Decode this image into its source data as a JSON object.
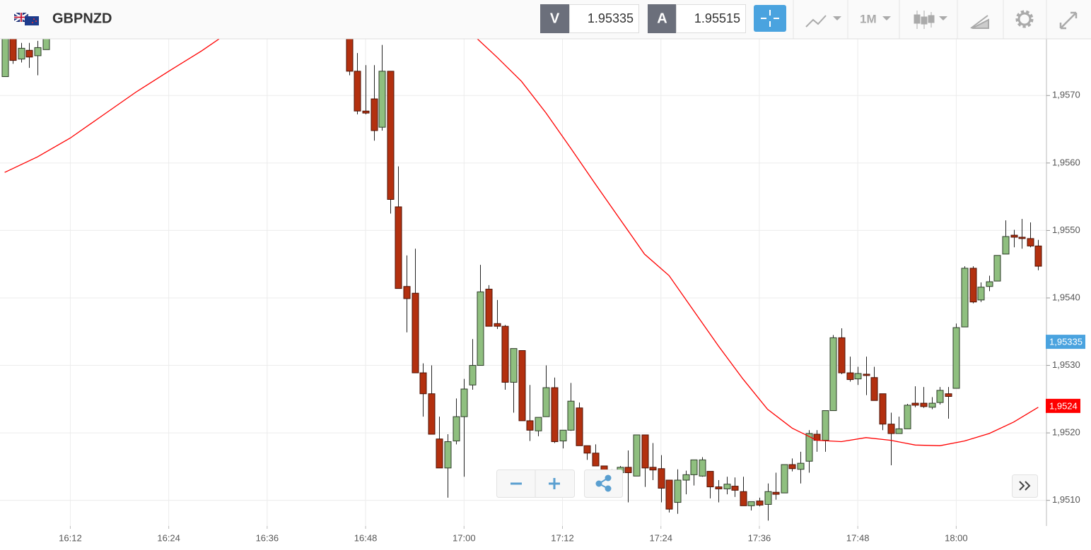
{
  "header": {
    "symbol": "GBPNZD",
    "sell_label": "V",
    "sell_price": 1.95335,
    "buy_label": "A",
    "buy_price": 1.95515,
    "timeframe": "1M"
  },
  "chart_data": {
    "type": "candlestick",
    "x": [
      "16:04",
      "16:05",
      "16:06",
      "16:07",
      "16:08",
      "16:09",
      "16:46",
      "16:47",
      "16:48",
      "16:49",
      "16:50",
      "16:51",
      "16:52",
      "16:53",
      "16:54",
      "16:55",
      "16:56",
      "16:57",
      "16:58",
      "16:59",
      "17:00",
      "17:01",
      "17:02",
      "17:03",
      "17:04",
      "17:05",
      "17:06",
      "17:07",
      "17:08",
      "17:09",
      "17:10",
      "17:11",
      "17:12",
      "17:13",
      "17:14",
      "17:15",
      "17:16",
      "17:17",
      "17:18",
      "17:19",
      "17:20",
      "17:21",
      "17:22",
      "17:23",
      "17:24",
      "17:25",
      "17:26",
      "17:27",
      "17:28",
      "17:29",
      "17:30",
      "17:31",
      "17:32",
      "17:33",
      "17:34",
      "17:35",
      "17:36",
      "17:37",
      "17:38",
      "17:39",
      "17:40",
      "17:41",
      "17:42",
      "17:43",
      "17:44",
      "17:45",
      "17:46",
      "17:47",
      "17:48",
      "17:49",
      "17:50",
      "17:51",
      "17:52",
      "17:53",
      "17:54",
      "17:55",
      "17:56",
      "17:57",
      "17:58",
      "17:59",
      "18:00",
      "18:01",
      "18:02",
      "18:03",
      "18:04",
      "18:05",
      "18:06",
      "18:07",
      "18:08",
      "18:09",
      "18:10"
    ],
    "open": [
      1.95728,
      1.95789,
      1.95754,
      1.95767,
      1.95759,
      1.95768,
      1.95799,
      1.95736,
      1.95677,
      1.95695,
      1.95653,
      1.95736,
      1.95535,
      1.95417,
      1.95407,
      1.95289,
      1.95258,
      1.95191,
      1.95148,
      1.95188,
      1.95224,
      1.95271,
      1.953,
      1.95413,
      1.95362,
      1.95358,
      1.95275,
      1.95322,
      1.95218,
      1.95203,
      1.95224,
      1.95267,
      1.95188,
      1.95204,
      1.95237,
      1.95181,
      1.9517,
      1.95151,
      1.95138,
      1.95141,
      1.95149,
      1.95136,
      1.95197,
      1.95149,
      1.95147,
      1.9513,
      1.95097,
      1.9513,
      1.95138,
      1.95136,
      1.95143,
      1.9512,
      1.95117,
      1.95121,
      1.95113,
      1.95092,
      1.95099,
      1.95094,
      1.95112,
      1.95111,
      1.95153,
      1.95146,
      1.95158,
      1.95198,
      1.95189,
      1.95233,
      1.95341,
      1.95289,
      1.9528,
      1.95287,
      1.95282,
      1.95258,
      1.95213,
      1.95199,
      1.95206,
      1.95244,
      1.95244,
      1.95238,
      1.95245,
      1.95258,
      1.95266,
      1.95357,
      1.95444,
      1.95397,
      1.95417,
      1.95425,
      1.95465,
      1.95493,
      1.9549,
      1.95488,
      1.95477
    ],
    "high": [
      1.95799,
      1.95799,
      1.95778,
      1.95778,
      1.95781,
      1.95794,
      1.9581,
      1.95763,
      1.95745,
      1.95745,
      1.95775,
      1.95736,
      1.95595,
      1.95463,
      1.95473,
      1.95303,
      1.953,
      1.95224,
      1.95198,
      1.95251,
      1.9528,
      1.95339,
      1.95449,
      1.95419,
      1.95397,
      1.9536,
      1.95325,
      1.95322,
      1.95271,
      1.95223,
      1.953,
      1.95282,
      1.95204,
      1.95274,
      1.95245,
      1.95181,
      1.95183,
      1.95151,
      1.95146,
      1.95151,
      1.95174,
      1.95197,
      1.95197,
      1.95185,
      1.95167,
      1.9513,
      1.95146,
      1.95144,
      1.9516,
      1.95164,
      1.95143,
      1.9513,
      1.95135,
      1.95134,
      1.95135,
      1.95098,
      1.95104,
      1.95125,
      1.95141,
      1.95153,
      1.95162,
      1.95172,
      1.95204,
      1.95204,
      1.95233,
      1.95345,
      1.95355,
      1.95313,
      1.95298,
      1.95313,
      1.95298,
      1.95258,
      1.9523,
      1.95224,
      1.95243,
      1.95269,
      1.95268,
      1.95253,
      1.95268,
      1.95268,
      1.95362,
      1.95447,
      1.95447,
      1.95423,
      1.95433,
      1.95463,
      1.95515,
      1.95501,
      1.95517,
      1.95512,
      1.95486
    ],
    "low": [
      1.95728,
      1.95747,
      1.95749,
      1.95741,
      1.9573,
      1.95768,
      1.9573,
      1.95672,
      1.95672,
      1.95633,
      1.95648,
      1.95525,
      1.95414,
      1.95349,
      1.95289,
      1.95224,
      1.95198,
      1.95148,
      1.95104,
      1.95183,
      1.95135,
      1.95264,
      1.953,
      1.95358,
      1.95354,
      1.95264,
      1.9523,
      1.95218,
      1.95188,
      1.95195,
      1.95224,
      1.95185,
      1.95177,
      1.95203,
      1.95181,
      1.9516,
      1.95151,
      1.95143,
      1.9513,
      1.9513,
      1.95097,
      1.95136,
      1.9512,
      1.9513,
      1.95097,
      1.95082,
      1.9508,
      1.95109,
      1.95122,
      1.95135,
      1.95103,
      1.95097,
      1.95109,
      1.95105,
      1.95092,
      1.95085,
      1.95091,
      1.9507,
      1.95101,
      1.95111,
      1.95143,
      1.95125,
      1.95141,
      1.95172,
      1.95172,
      1.95233,
      1.95287,
      1.95276,
      1.95271,
      1.95256,
      1.95248,
      1.95204,
      1.95152,
      1.95199,
      1.95206,
      1.95238,
      1.95237,
      1.95235,
      1.95242,
      1.95221,
      1.95266,
      1.95357,
      1.95392,
      1.95394,
      1.9541,
      1.95425,
      1.95465,
      1.95475,
      1.95473,
      1.95475,
      1.95441
    ],
    "close": [
      1.95794,
      1.95752,
      1.9577,
      1.95757,
      1.95771,
      1.95789,
      1.95736,
      1.95677,
      1.95674,
      1.95648,
      1.95736,
      1.95546,
      1.95414,
      1.95399,
      1.95289,
      1.95258,
      1.95198,
      1.95148,
      1.95187,
      1.95224,
      1.95265,
      1.953,
      1.95409,
      1.95358,
      1.95358,
      1.95275,
      1.95325,
      1.95218,
      1.95204,
      1.95223,
      1.95267,
      1.95187,
      1.95204,
      1.95247,
      1.95181,
      1.9517,
      1.95151,
      1.95143,
      1.95143,
      1.95149,
      1.95141,
      1.95197,
      1.95148,
      1.95145,
      1.95118,
      1.95087,
      1.9513,
      1.95138,
      1.9516,
      1.9516,
      1.9512,
      1.95117,
      1.95124,
      1.95115,
      1.95092,
      1.95098,
      1.95093,
      1.95113,
      1.95109,
      1.95153,
      1.95147,
      1.95155,
      1.95199,
      1.95189,
      1.95233,
      1.95341,
      1.95289,
      1.95279,
      1.95288,
      1.95285,
      1.95248,
      1.95213,
      1.95199,
      1.95206,
      1.95241,
      1.95241,
      1.95239,
      1.95244,
      1.95263,
      1.95254,
      1.95356,
      1.95444,
      1.95394,
      1.95416,
      1.95424,
      1.95463,
      1.95491,
      1.9549,
      1.95488,
      1.95477,
      1.95447
    ],
    "up_color": "#8fbf7f",
    "down_color": "#b3300f",
    "line": {
      "color": "#ff0000",
      "x": [
        "16:04",
        "16:08",
        "16:12",
        "16:16",
        "16:20",
        "16:24",
        "16:28",
        "16:31",
        "16:46",
        "17:01",
        "17:04",
        "17:07",
        "17:10",
        "17:13",
        "17:16",
        "17:19",
        "17:22",
        "17:25",
        "17:28",
        "17:31",
        "17:34",
        "17:37",
        "17:40",
        "17:43",
        "17:46",
        "17:49",
        "17:52",
        "17:55",
        "17:58",
        "18:01",
        "18:04",
        "18:07",
        "18:10"
      ],
      "values": [
        1.95586,
        1.95609,
        1.95637,
        1.95671,
        1.95705,
        1.95736,
        1.95766,
        1.95791,
        null,
        1.95791,
        1.95757,
        1.95721,
        1.95674,
        1.95622,
        1.95569,
        1.95517,
        1.95465,
        1.95433,
        1.95381,
        1.95329,
        1.9528,
        1.95235,
        1.95207,
        1.95189,
        1.95187,
        1.95193,
        1.95189,
        1.95182,
        1.95181,
        1.95188,
        1.95199,
        1.95216,
        1.95238
      ]
    },
    "price_labels": [
      {
        "value": 1.95335,
        "label": "1,95335",
        "color": "#4aa3df"
      },
      {
        "value": 1.9524,
        "label": "1,9524",
        "color": "#ff0000"
      }
    ],
    "xlim": [
      "16:03",
      "18:11"
    ],
    "xticks": [
      "16:12",
      "16:24",
      "16:36",
      "16:48",
      "17:00",
      "17:12",
      "17:24",
      "17:36",
      "17:48",
      "18:00"
    ],
    "ylim": [
      1.95062,
      1.95784
    ],
    "yticks": [
      {
        "value": 1.951,
        "label": "1,9510"
      },
      {
        "value": 1.952,
        "label": "1,9520"
      },
      {
        "value": 1.953,
        "label": "1,9530"
      },
      {
        "value": 1.954,
        "label": "1,9540"
      },
      {
        "value": 1.955,
        "label": "1,9550"
      },
      {
        "value": 1.956,
        "label": "1,9560"
      },
      {
        "value": 1.957,
        "label": "1,9570"
      }
    ],
    "grid": true
  }
}
